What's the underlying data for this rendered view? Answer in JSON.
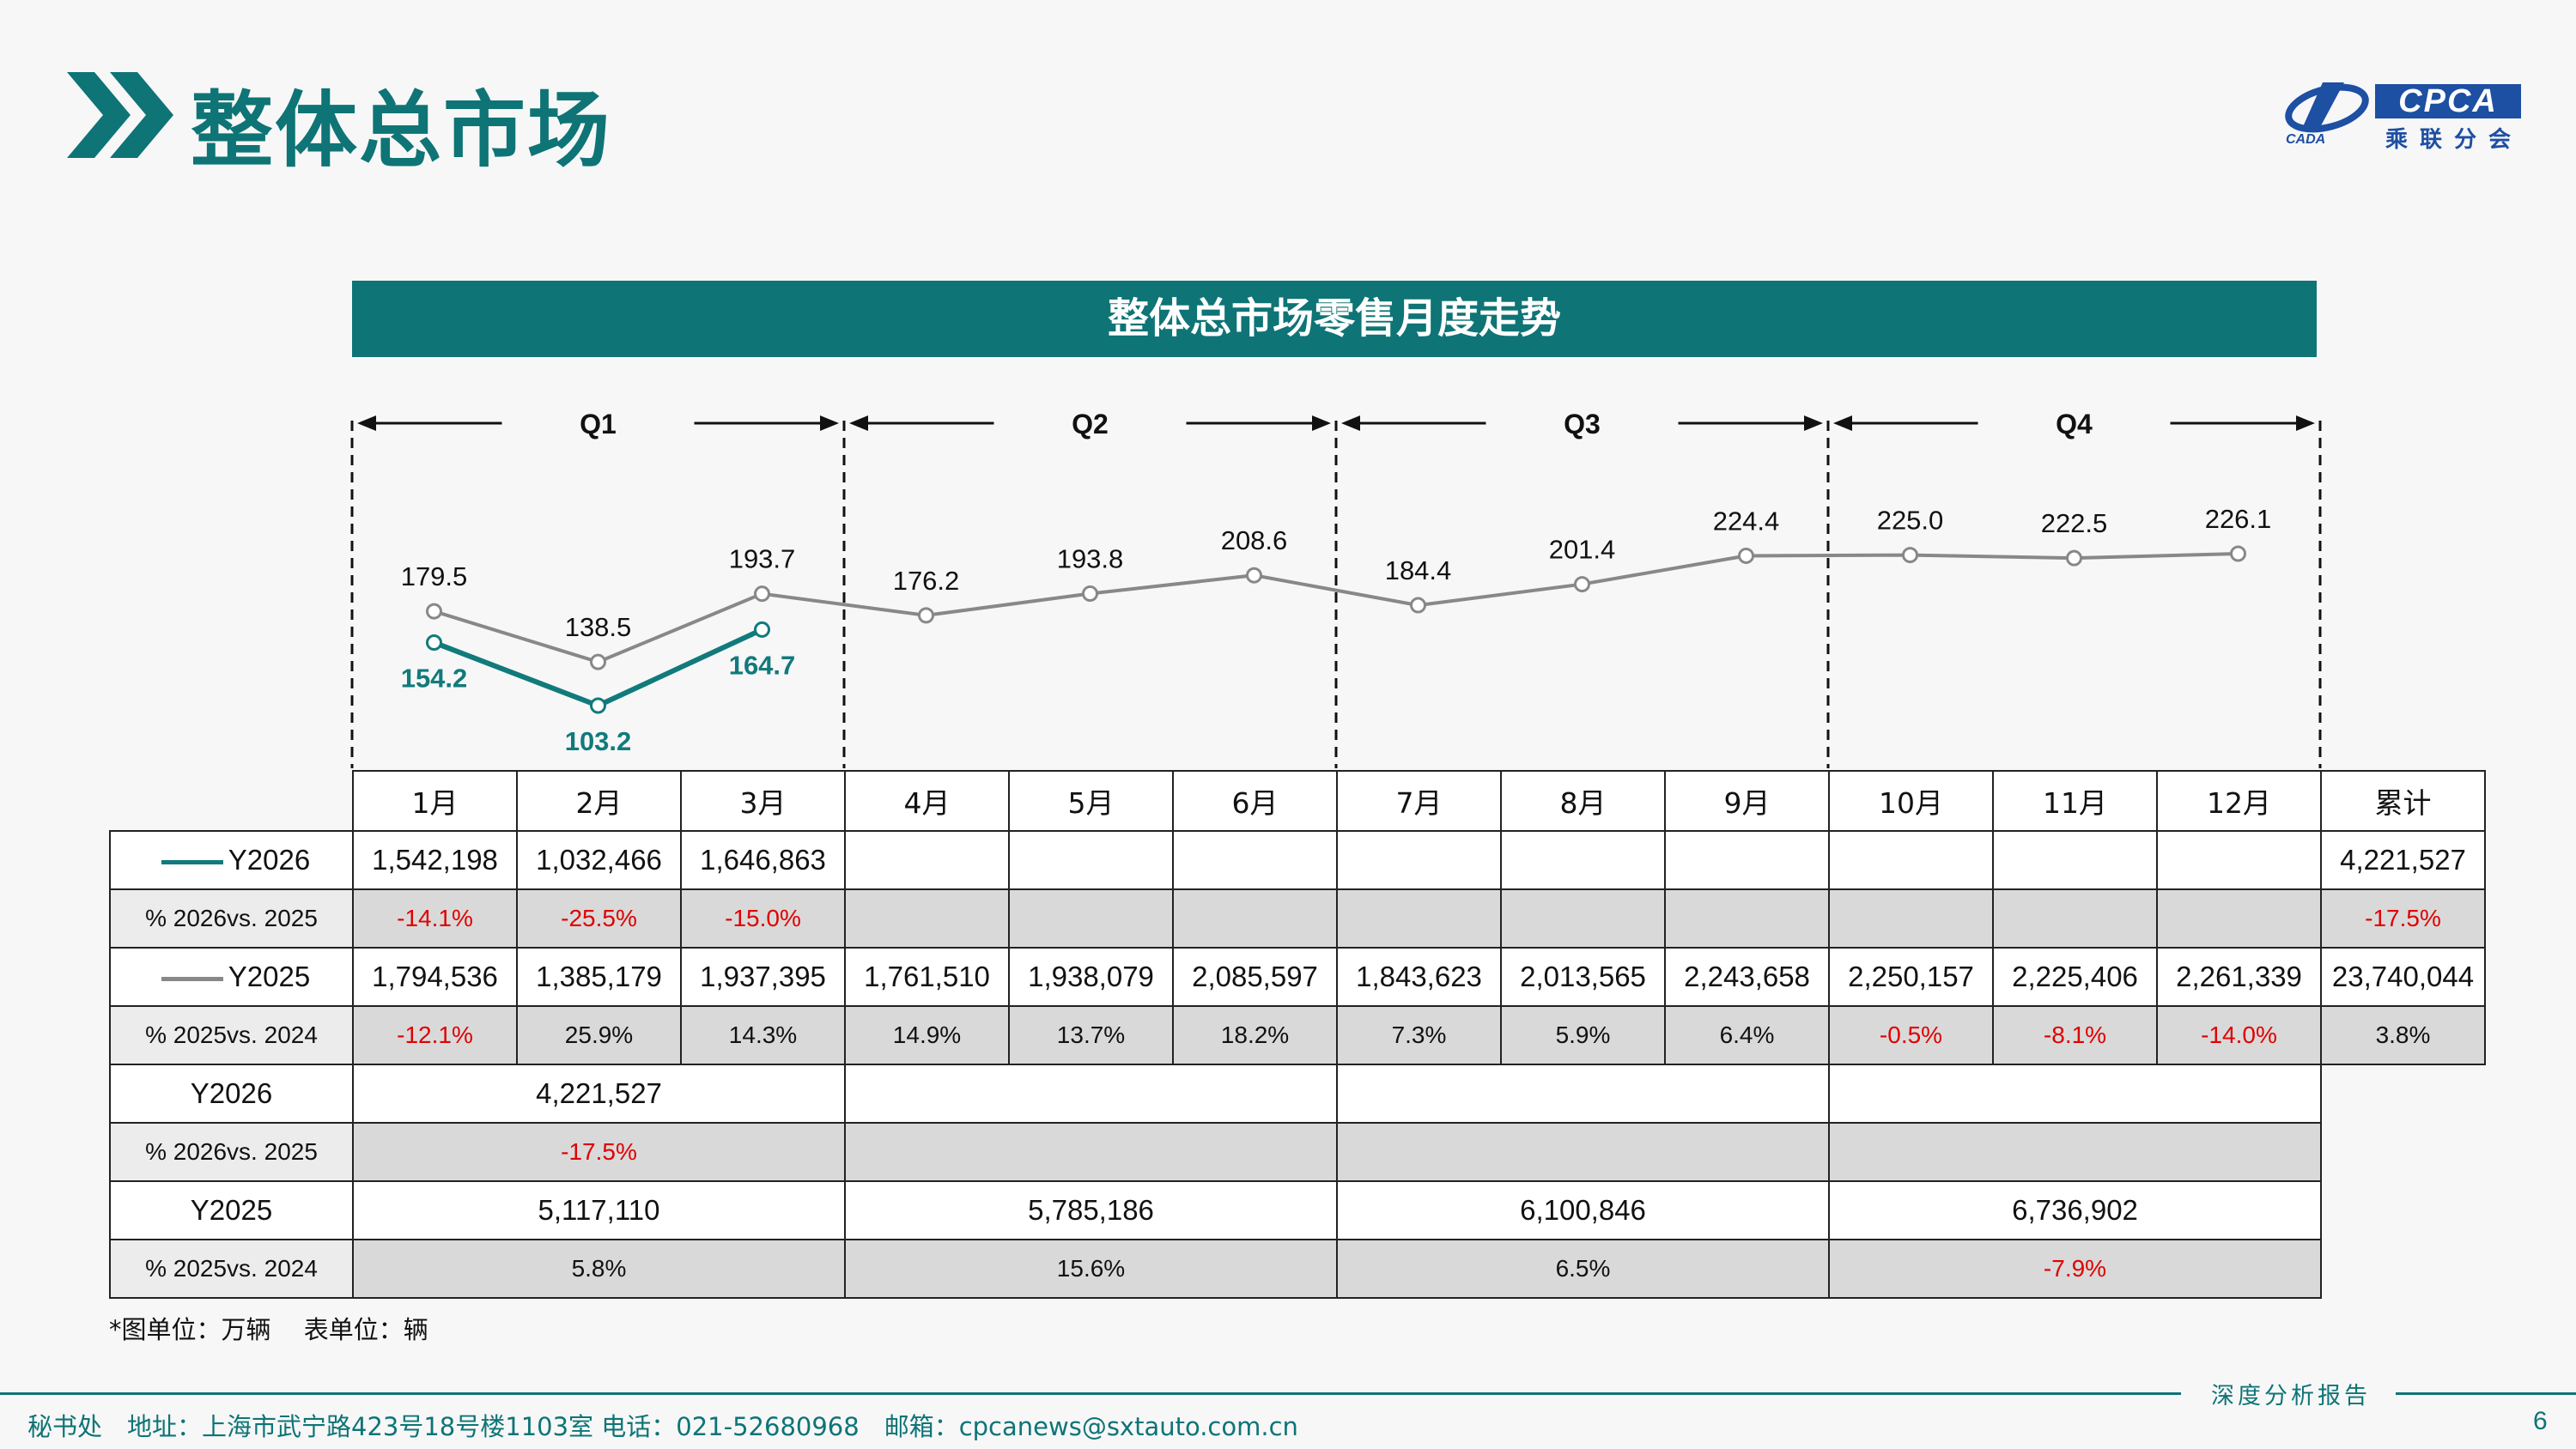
{
  "header": {
    "title": "整体总市场",
    "logo_text": "CPCA",
    "logo_cn": "乘联分会",
    "logo_sub": "CADA"
  },
  "chart_banner": "整体总市场零售月度走势",
  "quarters": [
    "Q1",
    "Q2",
    "Q3",
    "Q4"
  ],
  "chart_data": {
    "type": "line",
    "title": "整体总市场零售月度走势",
    "categories": [
      "1月",
      "2月",
      "3月",
      "4月",
      "5月",
      "6月",
      "7月",
      "8月",
      "9月",
      "10月",
      "11月",
      "12月"
    ],
    "unit": "万辆",
    "series": [
      {
        "name": "Y2026",
        "color": "#117a7c",
        "values": [
          154.2,
          103.2,
          164.7,
          null,
          null,
          null,
          null,
          null,
          null,
          null,
          null,
          null
        ]
      },
      {
        "name": "Y2025",
        "color": "#888888",
        "values": [
          179.5,
          138.5,
          193.7,
          176.2,
          193.8,
          208.6,
          184.4,
          201.4,
          224.4,
          225.0,
          222.5,
          226.1
        ]
      }
    ]
  },
  "table": {
    "months": [
      "1月",
      "2月",
      "3月",
      "4月",
      "5月",
      "6月",
      "7月",
      "8月",
      "9月",
      "10月",
      "11月",
      "12月"
    ],
    "total_header": "累计",
    "y2026_label": "Y2026",
    "y2026_values": [
      "1,542,198",
      "1,032,466",
      "1,646,863",
      "",
      "",
      "",
      "",
      "",
      "",
      "",
      "",
      ""
    ],
    "y2026_total": "4,221,527",
    "y2026_pct_label": "% 2026vs. 2025",
    "y2026_pct": [
      "-14.1%",
      "-25.5%",
      "-15.0%",
      "",
      "",
      "",
      "",
      "",
      "",
      "",
      "",
      ""
    ],
    "y2026_pct_total": "-17.5%",
    "y2025_label": "Y2025",
    "y2025_values": [
      "1,794,536",
      "1,385,179",
      "1,937,395",
      "1,761,510",
      "1,938,079",
      "2,085,597",
      "1,843,623",
      "2,013,565",
      "2,243,658",
      "2,250,157",
      "2,225,406",
      "2,261,339"
    ],
    "y2025_total": "23,740,044",
    "y2025_pct_label": "% 2025vs. 2024",
    "y2025_pct": [
      "-12.1%",
      "25.9%",
      "14.3%",
      "14.9%",
      "13.7%",
      "18.2%",
      "7.3%",
      "5.9%",
      "6.4%",
      "-0.5%",
      "-8.1%",
      "-14.0%"
    ],
    "y2025_pct_total": "3.8%",
    "quarterly": {
      "y2026_label": "Y2026",
      "y2026": [
        "4,221,527",
        "",
        "",
        ""
      ],
      "y2026_pct_label": "% 2026vs. 2025",
      "y2026_pct": [
        "-17.5%",
        "",
        "",
        ""
      ],
      "y2025_label": "Y2025",
      "y2025": [
        "5,117,110",
        "5,785,186",
        "6,100,846",
        "6,736,902"
      ],
      "y2025_pct_label": "% 2025vs. 2024",
      "y2025_pct": [
        "5.8%",
        "15.6%",
        "6.5%",
        "-7.9%"
      ]
    }
  },
  "note": "*图单位：万辆　 表单位：辆",
  "footer": {
    "tag": "深度分析报告",
    "contact": "秘书处　地址：上海市武宁路423号18号楼1103室  电话：021-52680968　邮箱：cpcanews@sxtauto.com.cn",
    "page": "6"
  },
  "colors": {
    "brand": "#0e7476",
    "series_2026": "#117a7c",
    "series_2025": "#888888",
    "negative": "#e00000",
    "logo_blue": "#1d4fa3"
  }
}
